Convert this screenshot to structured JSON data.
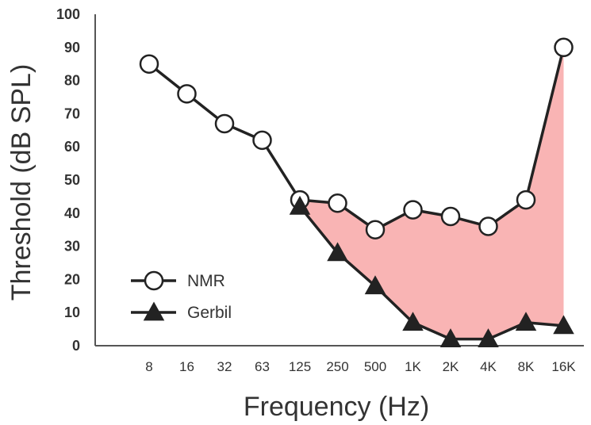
{
  "chart_data": {
    "type": "line",
    "title": "",
    "xlabel": "Frequency (Hz)",
    "ylabel": "Threshold (dB SPL)",
    "ylim": [
      0,
      100
    ],
    "yticks": [
      "0",
      "10",
      "20",
      "30",
      "40",
      "50",
      "60",
      "70",
      "80",
      "90",
      "100"
    ],
    "categories": [
      "8",
      "16",
      "32",
      "63",
      "125",
      "250",
      "500",
      "1K",
      "2K",
      "4K",
      "8K",
      "16K"
    ],
    "series": [
      {
        "name": "NMR",
        "marker": "circle",
        "values": [
          85,
          76,
          67,
          62,
          44,
          43,
          35,
          41,
          39,
          36,
          44,
          90
        ]
      },
      {
        "name": "Gerbil",
        "marker": "triangle",
        "values": [
          null,
          null,
          null,
          null,
          42,
          28,
          18,
          7,
          2,
          2,
          7,
          6
        ]
      }
    ],
    "shaded_region": {
      "between": [
        "NMR",
        "Gerbil"
      ],
      "from": "125",
      "to": "16K",
      "color": "#f9b4b4"
    },
    "legend_position": "bottom-left",
    "grid": false,
    "line_color": "#222222"
  }
}
